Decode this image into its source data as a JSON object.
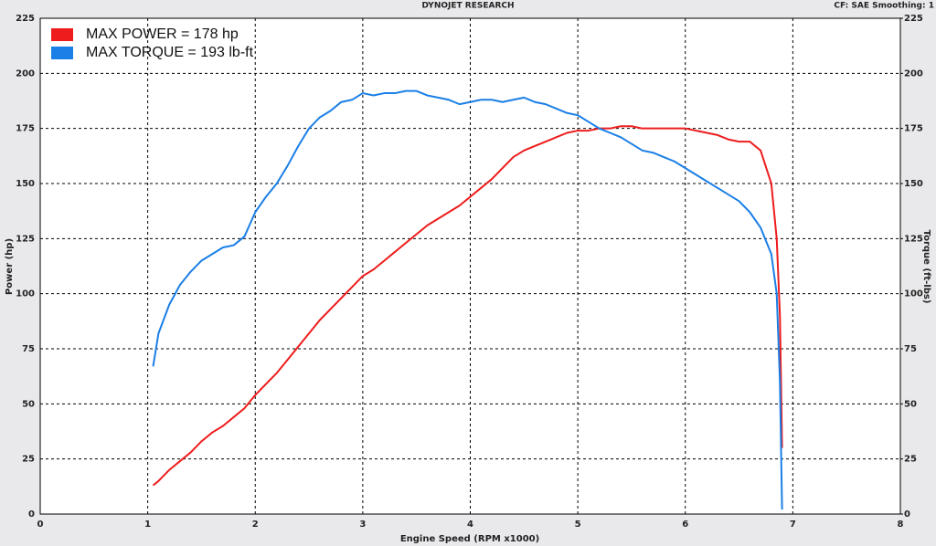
{
  "chart_data": {
    "type": "line",
    "header": "DYNOJET RESEARCH",
    "header_right": "CF: SAE  Smoothing: 1",
    "xlabel": "Engine Speed (RPM x1000)",
    "ylabel": "Power (hp)",
    "y2label": "Torque (ft-lbs)",
    "x": [
      1.05,
      1.1,
      1.2,
      1.3,
      1.4,
      1.5,
      1.6,
      1.7,
      1.8,
      1.9,
      2.0,
      2.1,
      2.2,
      2.3,
      2.4,
      2.5,
      2.6,
      2.7,
      2.8,
      2.9,
      3.0,
      3.1,
      3.2,
      3.3,
      3.4,
      3.5,
      3.6,
      3.7,
      3.8,
      3.9,
      4.0,
      4.1,
      4.2,
      4.3,
      4.4,
      4.5,
      4.6,
      4.7,
      4.8,
      4.9,
      5.0,
      5.1,
      5.2,
      5.3,
      5.4,
      5.5,
      5.6,
      5.7,
      5.8,
      5.9,
      6.0,
      6.1,
      6.2,
      6.3,
      6.4,
      6.5,
      6.6,
      6.7,
      6.8,
      6.85,
      6.88,
      6.9
    ],
    "series": [
      {
        "name": "MAX POWER = 178 hp",
        "color": "#ee1c1c",
        "axis": "y",
        "values": [
          13,
          15,
          20,
          24,
          28,
          33,
          37,
          40,
          44,
          48,
          54,
          59,
          64,
          70,
          76,
          82,
          88,
          93,
          98,
          103,
          108,
          111,
          115,
          119,
          123,
          127,
          131,
          134,
          137,
          140,
          144,
          148,
          152,
          157,
          162,
          165,
          167,
          169,
          171,
          173,
          174,
          174,
          175,
          175,
          176,
          176,
          175,
          175,
          175,
          175,
          175,
          174,
          173,
          172,
          170,
          169,
          169,
          165,
          150,
          125,
          90,
          30
        ]
      },
      {
        "name": "MAX TORQUE = 193 lb-ft",
        "color": "#1a7fe6",
        "axis": "y2",
        "values": [
          67,
          82,
          95,
          104,
          110,
          115,
          118,
          121,
          122,
          126,
          137,
          144,
          150,
          158,
          167,
          175,
          180,
          183,
          187,
          188,
          191,
          190,
          191,
          191,
          192,
          192,
          190,
          189,
          188,
          186,
          187,
          188,
          188,
          187,
          188,
          189,
          187,
          186,
          184,
          182,
          181,
          178,
          175,
          173,
          171,
          168,
          165,
          164,
          162,
          160,
          157,
          154,
          151,
          148,
          145,
          142,
          137,
          130,
          118,
          100,
          60,
          2
        ]
      }
    ],
    "xlim": [
      0,
      8
    ],
    "xticks": [
      0,
      1,
      2,
      3,
      4,
      5,
      6,
      7,
      8
    ],
    "ylim": [
      0,
      225
    ],
    "yticks": [
      0,
      25,
      50,
      75,
      100,
      125,
      150,
      175,
      200,
      225
    ],
    "y2lim": [
      0,
      225
    ],
    "y2ticks": [
      0,
      25,
      50,
      75,
      100,
      125,
      150,
      175,
      200,
      225
    ],
    "grid": true
  }
}
